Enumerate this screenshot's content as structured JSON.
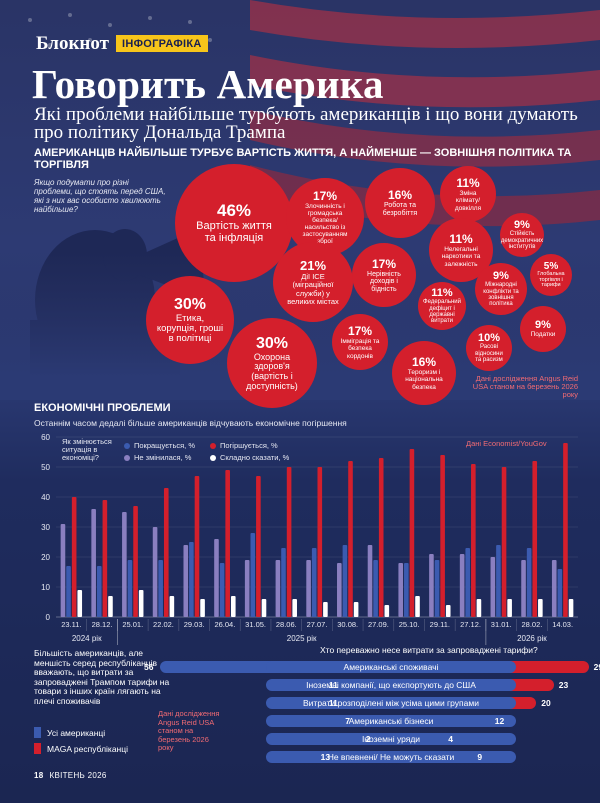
{
  "header": {
    "brand": "Блокнот",
    "tag": "ІНФОГРАФІКА"
  },
  "title": "Говорить Америка",
  "subtitle": "Які проблеми найбільше турбують американців і що вони думають про політику Дональда Трампа",
  "lead": "АМЕРИКАНЦІВ НАЙБІЛЬШЕ ТУРБУЄ ВАРТІСТЬ ЖИТТЯ, А НАЙМЕНШЕ — ЗОВНІШНЯ ПОЛІТИКА ТА ТОРГІВЛЯ",
  "question": "Якщо подумати про різні проблеми, що стоять перед США, які з них вас особисто хвилюють найбільше?",
  "bubbles": [
    {
      "pct": "46%",
      "label": "Вартість життя та інфляція"
    },
    {
      "pct": "17%",
      "label": "Злочинність і громадська безпека/ насильство із застосуванням зброї"
    },
    {
      "pct": "16%",
      "label": "Робота та безробіття"
    },
    {
      "pct": "11%",
      "label": "Зміна клімату/ довкілля"
    },
    {
      "pct": "9%",
      "label": "Стійкість демократичних інститутів"
    },
    {
      "pct": "11%",
      "label": "Нелегальні наркотики та залежність"
    },
    {
      "pct": "21%",
      "label": "Дії ICE (міграційної служби) у великих містах"
    },
    {
      "pct": "17%",
      "label": "Нерівність доходів і бідність"
    },
    {
      "pct": "9%",
      "label": "Міжнародні конфлікти та зовнішня політика"
    },
    {
      "pct": "5%",
      "label": "Глобальна торгівля і тарифи"
    },
    {
      "pct": "30%",
      "label": "Етика, корупція, гроші в політиці"
    },
    {
      "pct": "11%",
      "label": "Федеральний дефіцит і державні витрати"
    },
    {
      "pct": "9%",
      "label": "Податки"
    },
    {
      "pct": "30%",
      "label": "Охорона здоров'я (вартість і доступність)"
    },
    {
      "pct": "17%",
      "label": "Імміграція та безпека кордонів"
    },
    {
      "pct": "10%",
      "label": "Расові відносини та расизм"
    },
    {
      "pct": "16%",
      "label": "Тероризм і національна безпека"
    }
  ],
  "source1": "Дані дослідження Angus Reid USA станом на березень 2026 року",
  "economy": {
    "title": "ЕКОНОМІЧНІ ПРОБЛЕМИ",
    "subtitle": "Останнім часом дедалі більше американців відчувають економічне погіршення",
    "question": "Як змінюється ситуація в економіці?",
    "source": "Дані Economist/YouGov"
  },
  "chart_data": {
    "type": "bar",
    "categories": [
      "23.11.",
      "28.12.",
      "25.01.",
      "22.02.",
      "29.03.",
      "26.04.",
      "31.05.",
      "28.06.",
      "27.07.",
      "30.08.",
      "27.09.",
      "25.10.",
      "29.11.",
      "27.12.",
      "31.01.",
      "28.02.",
      "14.03."
    ],
    "year_groups": [
      {
        "label": "2024 рік",
        "start": 0,
        "end": 1
      },
      {
        "label": "2025 рік",
        "start": 2,
        "end": 13
      },
      {
        "label": "2026 рік",
        "start": 14,
        "end": 16
      }
    ],
    "series": [
      {
        "name": "Не змінилася, %",
        "color": "#8a7fc0",
        "values": [
          31,
          36,
          35,
          30,
          24,
          26,
          19,
          19,
          19,
          18,
          24,
          18,
          21,
          21,
          20,
          19,
          19
        ]
      },
      {
        "name": "Покращується, %",
        "color": "#3b5bb0",
        "values": [
          17,
          17,
          19,
          19,
          25,
          18,
          28,
          23,
          23,
          24,
          19,
          18,
          19,
          23,
          24,
          23,
          16
        ]
      },
      {
        "name": "Погіршується, %",
        "color": "#d41f2c",
        "values": [
          40,
          39,
          37,
          43,
          47,
          49,
          47,
          50,
          50,
          52,
          53,
          56,
          54,
          51,
          50,
          52,
          58
        ]
      },
      {
        "name": "Складно сказати, %",
        "color": "#ffffff",
        "values": [
          9,
          7,
          9,
          7,
          6,
          7,
          6,
          6,
          5,
          5,
          4,
          7,
          4,
          6,
          6,
          6,
          6
        ]
      }
    ],
    "ylim": [
      0,
      60
    ],
    "yticks": [
      0,
      10,
      20,
      30,
      40,
      50,
      60
    ]
  },
  "tariffs": {
    "question": "Хто переважно несе витрати за запроваджені тарифи?",
    "note": "Більшість американців, але меншість серед республіканців вважають, що витрати за запроваджені Трампом тарифи на товари з інших країн лягають на плечі споживачів",
    "legend": [
      {
        "label": "Усі американці",
        "color": "#3b5bb0"
      },
      {
        "label": "MAGA республіканці",
        "color": "#d41f2c"
      }
    ],
    "source": "Дані дослідження Angus Reid USA станом на березень 2026 року",
    "rows": [
      {
        "label": "Американські споживачі",
        "all": 56,
        "maga": 29
      },
      {
        "label": "Іноземні компанії, що експортують до США",
        "all": 11,
        "maga": 23
      },
      {
        "label": "Витрати розподілені між усіма цими групами",
        "all": 11,
        "maga": 20
      },
      {
        "label": "Американські бізнеси",
        "all": 7,
        "maga": 12
      },
      {
        "label": "Іноземні уряди",
        "all": 2,
        "maga": 4
      },
      {
        "label": "Не впевнені/ Не можуть сказати",
        "all": 13,
        "maga": 9
      }
    ]
  },
  "footer": {
    "page": "18",
    "issue": "КВІТЕНЬ 2026"
  }
}
